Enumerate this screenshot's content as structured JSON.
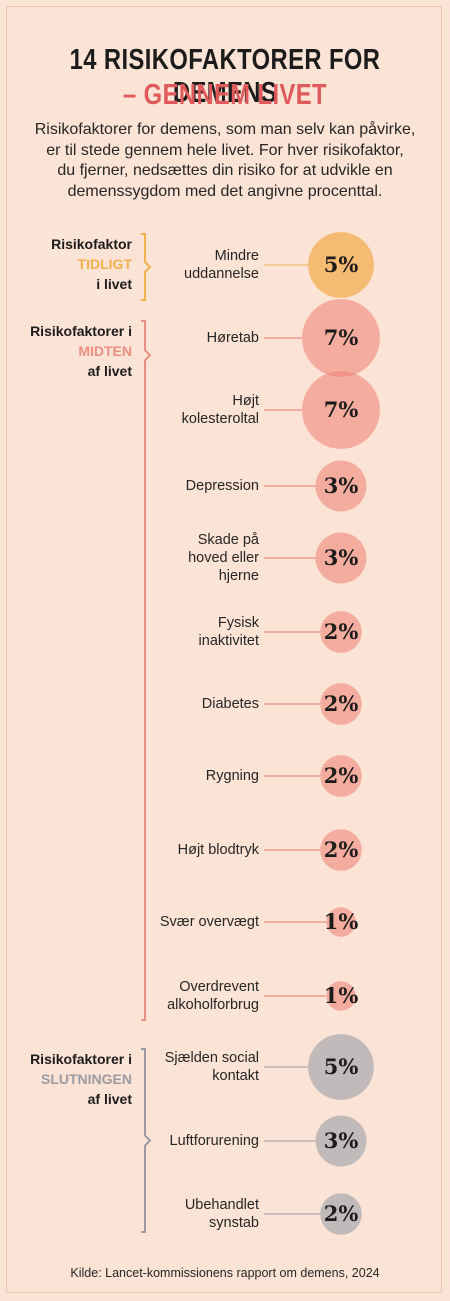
{
  "header": {
    "title_line1": "14 RISIKOFAKTORER FOR DEMENS",
    "title_line2": "– GENNEM LIVET",
    "intro_lines": [
      "Risikofaktorer for demens, som man selv kan påvirke,",
      "er til stede gennem hele livet. For hver risikofaktor,",
      "du fjerner, nedsættes din risiko for at udvikle en",
      "demenssygdom med det angivne procenttal."
    ]
  },
  "phases": [
    {
      "key": "early",
      "line1": "Risikofaktor",
      "line2": "TIDLIGT",
      "line3": "i livet",
      "color": "#f2b04e"
    },
    {
      "key": "mid",
      "line1": "Risikofaktorer i",
      "line2": "MIDTEN",
      "line3": "af livet",
      "color": "#ea8f83"
    },
    {
      "key": "late",
      "line1": "Risikofaktorer i",
      "line2": "SLUTNINGEN",
      "line3": "af livet",
      "color": "#9c9aa2"
    }
  ],
  "colors": {
    "background": "#fbe3d5",
    "early": "#f5b461",
    "mid": "#ef7f72",
    "late": "#aeacb1",
    "title_accent": "#e0595b"
  },
  "chart_data": {
    "type": "bubble",
    "unit": "%",
    "series": [
      {
        "name": "TIDLIGT",
        "categories": [
          "Mindre uddannelse"
        ],
        "values": [
          5
        ]
      },
      {
        "name": "MIDTEN",
        "categories": [
          "Høretab",
          "Højt kolesteroltal",
          "Depression",
          "Skade på hoved eller hjerne",
          "Fysisk inaktivitet",
          "Diabetes",
          "Rygning",
          "Højt blodtryk",
          "Svær overvægt",
          "Overdrevent alkoholforbrug"
        ],
        "values": [
          7,
          7,
          3,
          3,
          2,
          2,
          2,
          2,
          1,
          1
        ]
      },
      {
        "name": "SLUTNINGEN",
        "categories": [
          "Sjælden social kontakt",
          "Luftforurening",
          "Ubehandlet synstab"
        ],
        "values": [
          5,
          3,
          2
        ]
      }
    ],
    "items": [
      {
        "phase": "early",
        "lines": [
          "Mindre",
          "uddannelse"
        ],
        "value": 5,
        "value_label": "5%"
      },
      {
        "phase": "mid",
        "lines": [
          "Høretab"
        ],
        "value": 7,
        "value_label": "7%"
      },
      {
        "phase": "mid",
        "lines": [
          "Højt",
          "kolesteroltal"
        ],
        "value": 7,
        "value_label": "7%"
      },
      {
        "phase": "mid",
        "lines": [
          "Depression"
        ],
        "value": 3,
        "value_label": "3%"
      },
      {
        "phase": "mid",
        "lines": [
          "Skade på",
          "hoved eller",
          "hjerne"
        ],
        "value": 3,
        "value_label": "3%"
      },
      {
        "phase": "mid",
        "lines": [
          "Fysisk",
          "inaktivitet"
        ],
        "value": 2,
        "value_label": "2%"
      },
      {
        "phase": "mid",
        "lines": [
          "Diabetes"
        ],
        "value": 2,
        "value_label": "2%"
      },
      {
        "phase": "mid",
        "lines": [
          "Rygning"
        ],
        "value": 2,
        "value_label": "2%"
      },
      {
        "phase": "mid",
        "lines": [
          "Højt blodtryk"
        ],
        "value": 2,
        "value_label": "2%"
      },
      {
        "phase": "mid",
        "lines": [
          "Svær overvægt"
        ],
        "value": 1,
        "value_label": "1%"
      },
      {
        "phase": "mid",
        "lines": [
          "Overdrevent",
          "alkoholforbrug"
        ],
        "value": 1,
        "value_label": "1%"
      },
      {
        "phase": "late",
        "lines": [
          "Sjælden social",
          "kontakt"
        ],
        "value": 5,
        "value_label": "5%"
      },
      {
        "phase": "late",
        "lines": [
          "Luftforurening"
        ],
        "value": 3,
        "value_label": "3%"
      },
      {
        "phase": "late",
        "lines": [
          "Ubehandlet",
          "synstab"
        ],
        "value": 2,
        "value_label": "2%"
      }
    ]
  },
  "source": "Kilde: Lancet-kommissionens rapport om demens, 2024"
}
